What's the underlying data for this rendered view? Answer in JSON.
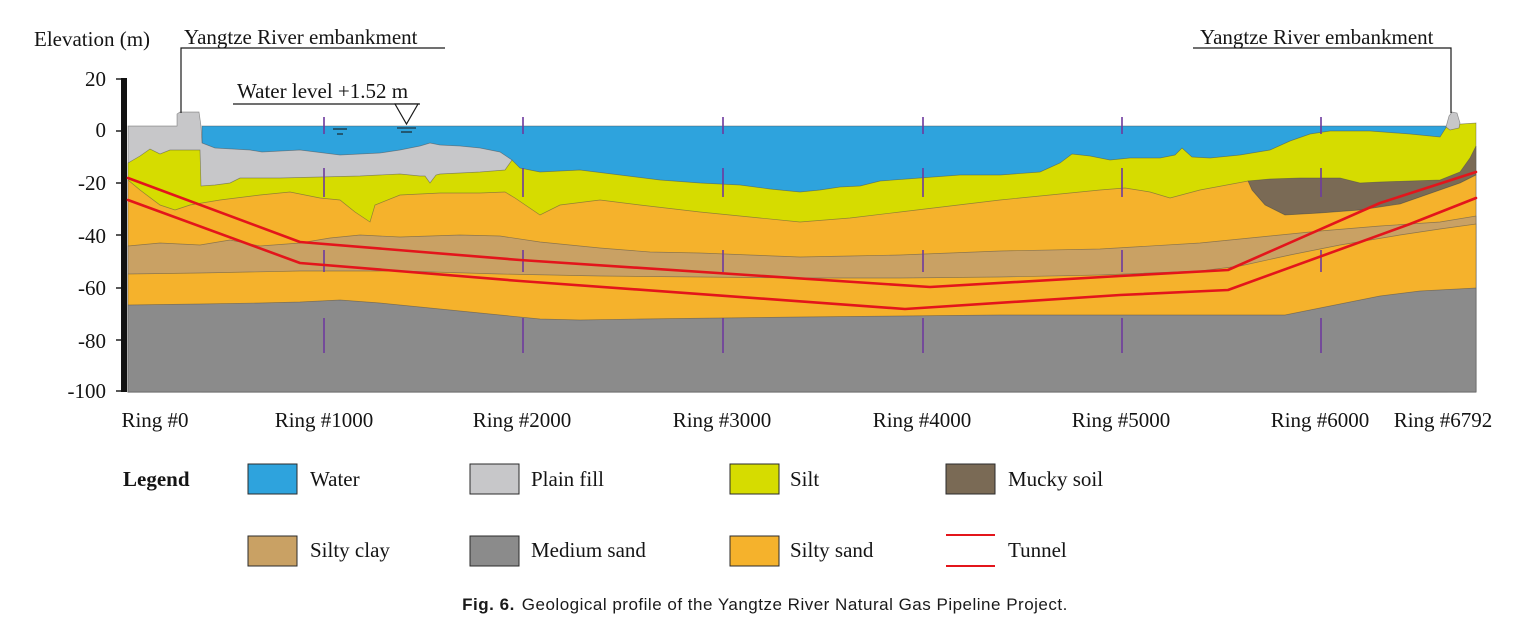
{
  "figure": {
    "y_axis_title": "Elevation (m)",
    "y_ticks": [
      "20",
      "0",
      "-20",
      "-40",
      "-60",
      "-80",
      "-100"
    ],
    "ring_labels": [
      "Ring #0",
      "Ring #1000",
      "Ring #2000",
      "Ring #3000",
      "Ring #4000",
      "Ring #5000",
      "Ring #6000",
      "Ring #6792"
    ],
    "left_embankment_label": "Yangtze River embankment",
    "right_embankment_label": "Yangtze River embankment",
    "water_level_label": "Water level +1.52 m"
  },
  "legend": {
    "title": "Legend",
    "items": [
      {
        "label": "Water",
        "color": "#2EA3DD"
      },
      {
        "label": "Plain fill",
        "color": "#C7C7C9"
      },
      {
        "label": "Silt",
        "color": "#D6DC00"
      },
      {
        "label": "Mucky soil",
        "color": "#7A6A55"
      },
      {
        "label": "Silty clay",
        "color": "#C9A164"
      },
      {
        "label": "Medium sand",
        "color": "#8B8B8B"
      },
      {
        "label": "Silty sand",
        "color": "#F5B22C"
      },
      {
        "label": "Tunnel",
        "color": "#E3151B"
      }
    ]
  },
  "caption": {
    "label": "Fig. 6.",
    "text": "Geological profile of the Yangtze River Natural Gas Pipeline Project."
  }
}
